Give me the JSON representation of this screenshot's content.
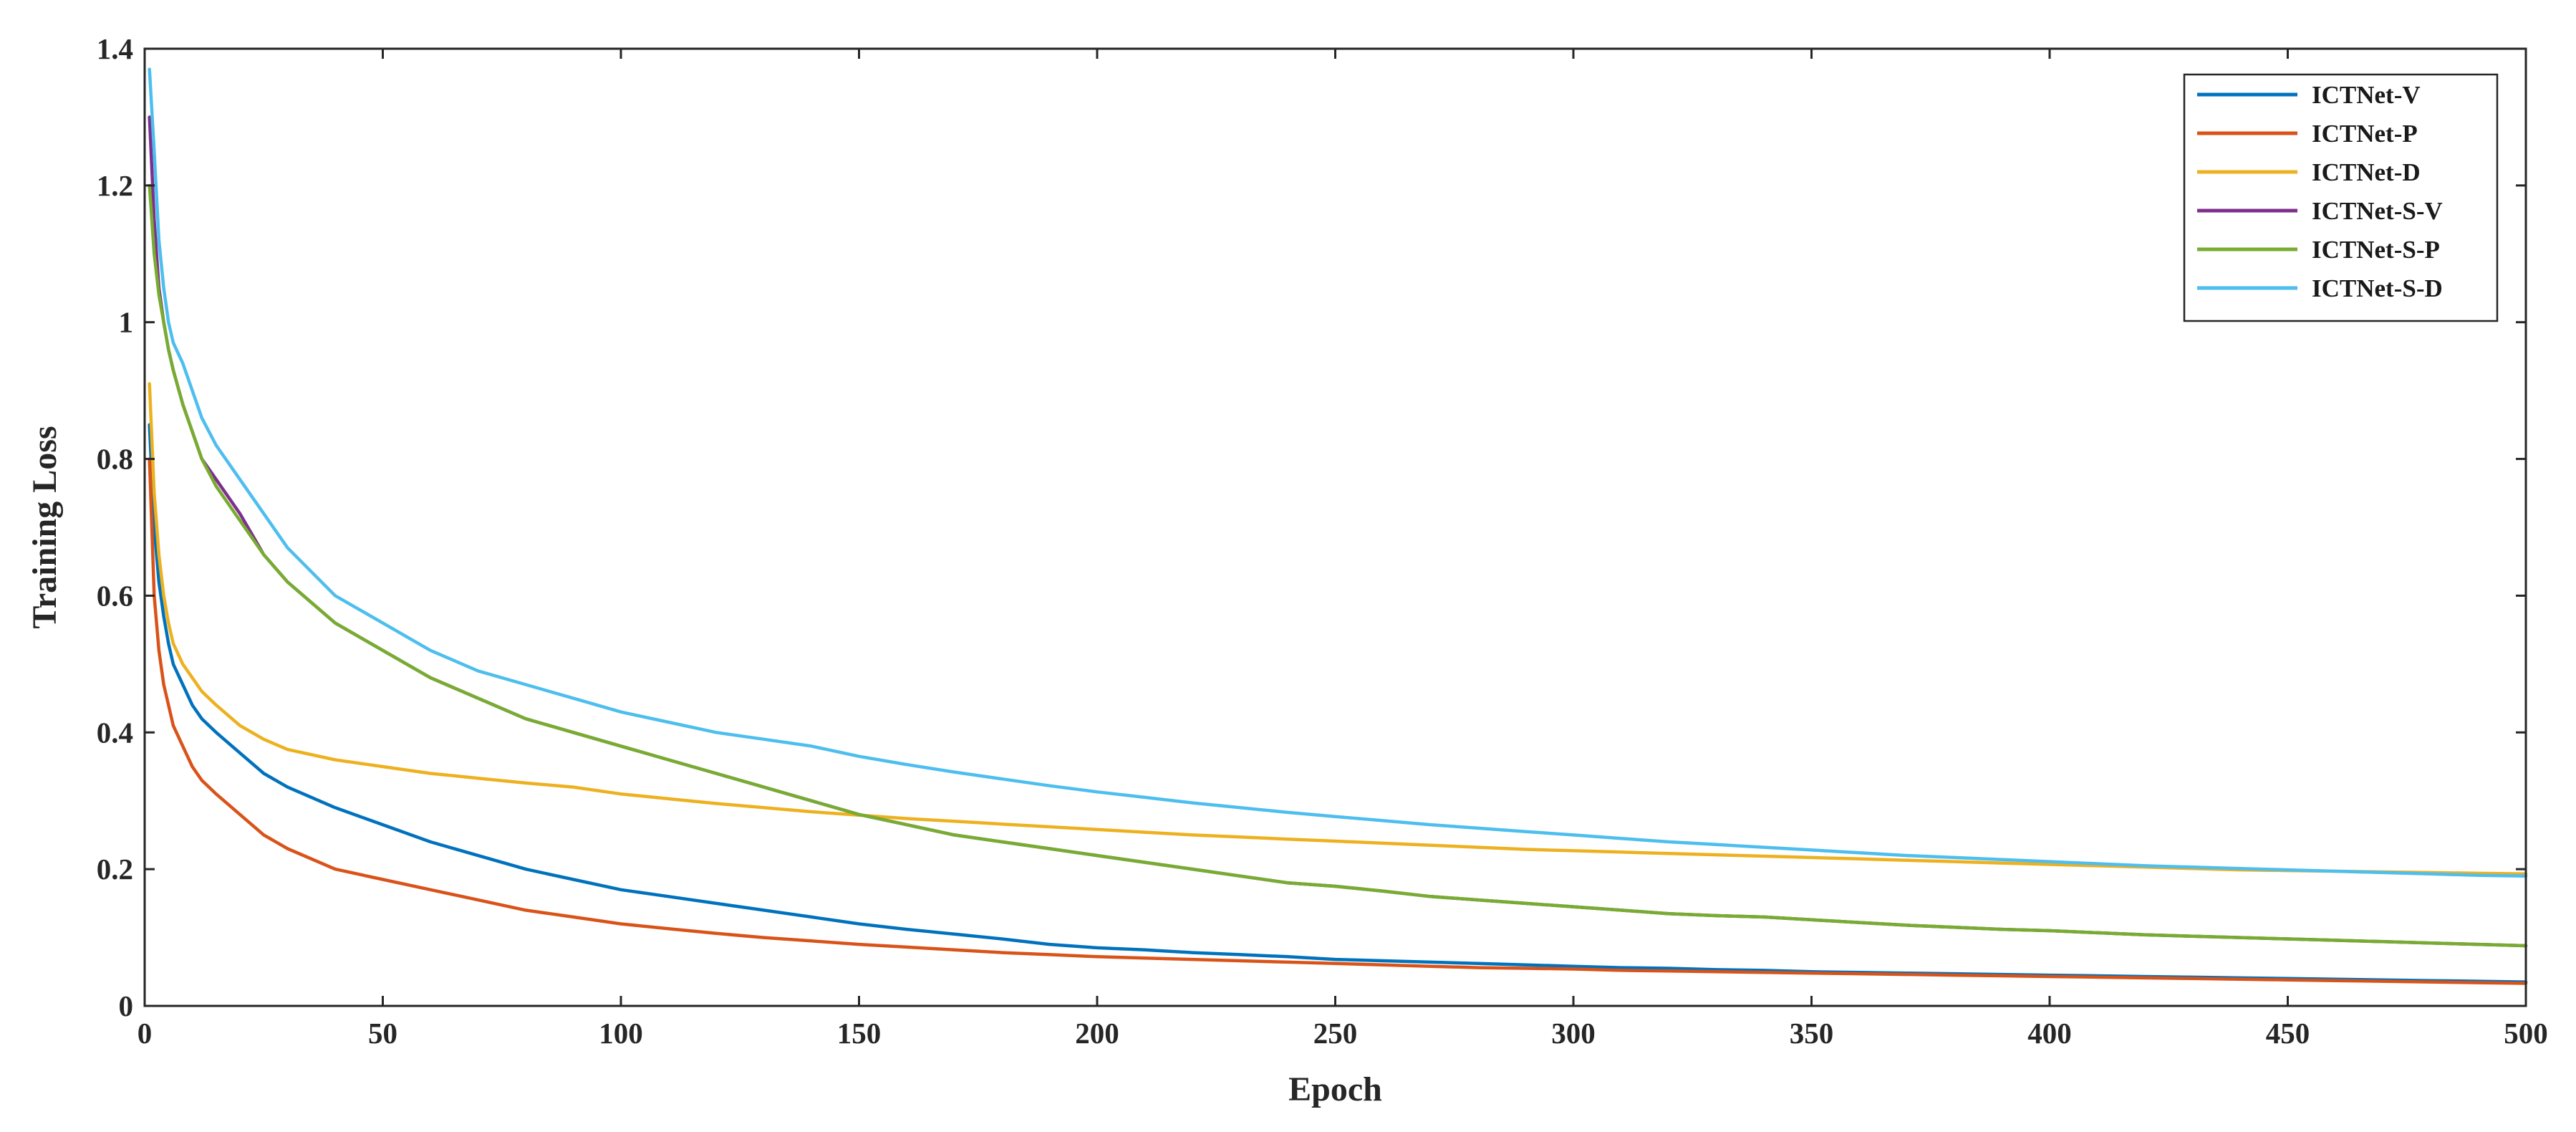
{
  "chart_data": {
    "type": "line",
    "title": "",
    "xlabel": "Epoch",
    "ylabel": "Training Loss",
    "xlim": [
      0,
      500
    ],
    "ylim": [
      0,
      1.4
    ],
    "xticks": [
      0,
      50,
      100,
      150,
      200,
      250,
      300,
      350,
      400,
      450,
      500
    ],
    "yticks": [
      0,
      0.2,
      0.4,
      0.6,
      0.8,
      1,
      1.2,
      1.4
    ],
    "grid": false,
    "legend_position": "top-right",
    "x": [
      1,
      2,
      3,
      4,
      5,
      6,
      8,
      10,
      12,
      15,
      20,
      25,
      30,
      40,
      50,
      60,
      70,
      80,
      90,
      100,
      110,
      120,
      130,
      140,
      150,
      160,
      170,
      180,
      190,
      200,
      210,
      220,
      230,
      240,
      250,
      260,
      270,
      280,
      290,
      300,
      310,
      320,
      330,
      340,
      350,
      360,
      370,
      380,
      390,
      400,
      410,
      420,
      430,
      440,
      450,
      460,
      470,
      480,
      490,
      500
    ],
    "series": [
      {
        "name": "ICTNet-V",
        "color": "#0072BD",
        "values": [
          0.85,
          0.7,
          0.62,
          0.57,
          0.53,
          0.5,
          0.47,
          0.44,
          0.42,
          0.4,
          0.37,
          0.34,
          0.32,
          0.29,
          0.265,
          0.24,
          0.22,
          0.2,
          0.185,
          0.17,
          0.16,
          0.15,
          0.14,
          0.13,
          0.12,
          0.112,
          0.105,
          0.098,
          0.09,
          0.085,
          0.082,
          0.078,
          0.075,
          0.072,
          0.068,
          0.066,
          0.064,
          0.062,
          0.06,
          0.058,
          0.056,
          0.055,
          0.053,
          0.052,
          0.05,
          0.049,
          0.048,
          0.047,
          0.046,
          0.045,
          0.044,
          0.043,
          0.042,
          0.041,
          0.04,
          0.039,
          0.038,
          0.037,
          0.036,
          0.035
        ]
      },
      {
        "name": "ICTNet-P",
        "color": "#D95319",
        "values": [
          0.8,
          0.6,
          0.52,
          0.47,
          0.44,
          0.41,
          0.38,
          0.35,
          0.33,
          0.31,
          0.28,
          0.25,
          0.23,
          0.2,
          0.185,
          0.17,
          0.155,
          0.14,
          0.13,
          0.12,
          0.113,
          0.106,
          0.1,
          0.095,
          0.09,
          0.086,
          0.082,
          0.078,
          0.075,
          0.072,
          0.07,
          0.068,
          0.066,
          0.064,
          0.062,
          0.06,
          0.058,
          0.056,
          0.055,
          0.054,
          0.052,
          0.051,
          0.05,
          0.049,
          0.048,
          0.047,
          0.046,
          0.045,
          0.044,
          0.043,
          0.042,
          0.041,
          0.04,
          0.039,
          0.038,
          0.037,
          0.036,
          0.035,
          0.034,
          0.033
        ]
      },
      {
        "name": "ICTNet-D",
        "color": "#EDB120",
        "values": [
          0.91,
          0.75,
          0.66,
          0.6,
          0.56,
          0.53,
          0.5,
          0.48,
          0.46,
          0.44,
          0.41,
          0.39,
          0.375,
          0.36,
          0.35,
          0.34,
          0.333,
          0.326,
          0.32,
          0.31,
          0.303,
          0.296,
          0.29,
          0.284,
          0.279,
          0.274,
          0.27,
          0.266,
          0.262,
          0.258,
          0.254,
          0.25,
          0.247,
          0.244,
          0.241,
          0.238,
          0.235,
          0.232,
          0.229,
          0.227,
          0.225,
          0.223,
          0.221,
          0.219,
          0.217,
          0.215,
          0.213,
          0.211,
          0.209,
          0.207,
          0.205,
          0.203,
          0.201,
          0.199,
          0.198,
          0.197,
          0.196,
          0.195,
          0.194,
          0.193
        ]
      },
      {
        "name": "ICTNet-S-V",
        "color": "#7E2F8E",
        "values": [
          1.3,
          1.15,
          1.05,
          1.0,
          0.96,
          0.93,
          0.88,
          0.84,
          0.8,
          0.77,
          0.72,
          0.66,
          0.62,
          0.56,
          0.52,
          0.48,
          0.45,
          0.42,
          0.4,
          0.38,
          0.36,
          0.34,
          0.32,
          0.3,
          0.28,
          0.265,
          0.25,
          0.24,
          0.23,
          0.22,
          0.21,
          0.2,
          0.19,
          0.18,
          0.175,
          0.168,
          0.16,
          0.155,
          0.15,
          0.145,
          0.14,
          0.135,
          0.132,
          0.13,
          0.126,
          0.122,
          0.118,
          0.115,
          0.112,
          0.11,
          0.107,
          0.104,
          0.102,
          0.1,
          0.098,
          0.096,
          0.094,
          0.092,
          0.09,
          0.088
        ]
      },
      {
        "name": "ICTNet-S-P",
        "color": "#77AC30",
        "values": [
          1.2,
          1.1,
          1.04,
          1.0,
          0.96,
          0.93,
          0.88,
          0.84,
          0.8,
          0.76,
          0.71,
          0.66,
          0.62,
          0.56,
          0.52,
          0.48,
          0.45,
          0.42,
          0.4,
          0.38,
          0.36,
          0.34,
          0.32,
          0.3,
          0.28,
          0.265,
          0.25,
          0.24,
          0.23,
          0.22,
          0.21,
          0.2,
          0.19,
          0.18,
          0.175,
          0.168,
          0.16,
          0.155,
          0.15,
          0.145,
          0.14,
          0.135,
          0.132,
          0.13,
          0.126,
          0.122,
          0.118,
          0.115,
          0.112,
          0.11,
          0.107,
          0.104,
          0.102,
          0.1,
          0.098,
          0.096,
          0.094,
          0.092,
          0.09,
          0.088
        ]
      },
      {
        "name": "ICTNet-S-D",
        "color": "#4DBEEE",
        "values": [
          1.37,
          1.25,
          1.12,
          1.05,
          1.0,
          0.97,
          0.94,
          0.9,
          0.86,
          0.82,
          0.77,
          0.72,
          0.67,
          0.6,
          0.56,
          0.52,
          0.49,
          0.47,
          0.45,
          0.43,
          0.415,
          0.4,
          0.39,
          0.38,
          0.365,
          0.353,
          0.342,
          0.332,
          0.322,
          0.313,
          0.305,
          0.297,
          0.29,
          0.283,
          0.277,
          0.271,
          0.265,
          0.26,
          0.255,
          0.25,
          0.245,
          0.24,
          0.236,
          0.232,
          0.228,
          0.224,
          0.22,
          0.217,
          0.214,
          0.211,
          0.208,
          0.205,
          0.203,
          0.201,
          0.199,
          0.197,
          0.195,
          0.193,
          0.191,
          0.19
        ]
      }
    ]
  }
}
